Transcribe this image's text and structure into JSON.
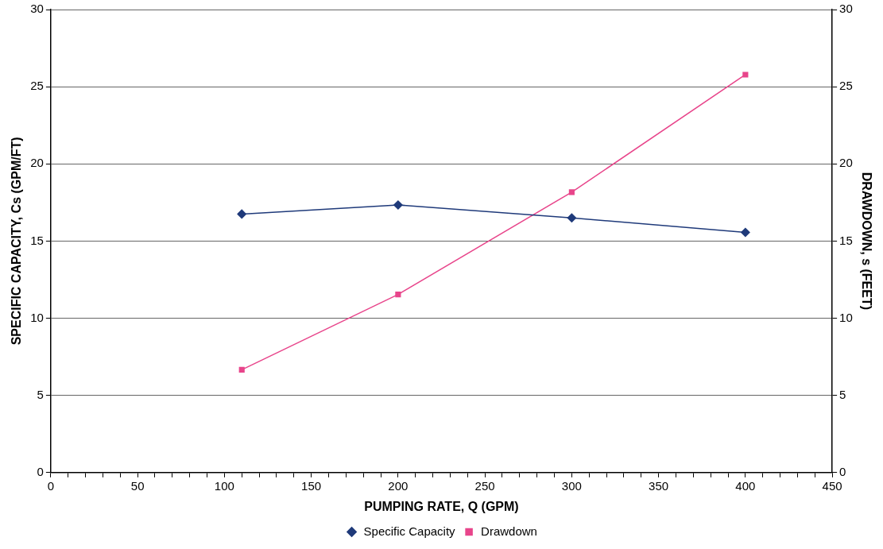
{
  "chart_data": {
    "type": "line",
    "xlabel": "PUMPING RATE, Q (GPM)",
    "ylabel": "SPECIFIC CAPACITY, Cs (GPM/FT)",
    "y2label": "DRAWDOWN, s (FEET)",
    "x": [
      110,
      200,
      300,
      400
    ],
    "series": [
      {
        "name": "Specific Capacity",
        "color": "#1f3a7a",
        "marker": "diamond",
        "values": [
          16.75,
          17.34,
          16.5,
          15.56
        ]
      },
      {
        "name": "Drawdown",
        "color": "#e8458b",
        "marker": "square",
        "axis": "y2",
        "values": [
          6.66,
          11.54,
          18.17,
          25.78
        ]
      }
    ],
    "xlim": [
      0,
      450
    ],
    "xticks": [
      0,
      {
        "value": 10,
        "label": null
      },
      {
        "value": 20,
        "label": null
      },
      {
        "value": 30,
        "label": null
      },
      {
        "value": 40,
        "label": null
      },
      50,
      {
        "value": 60,
        "label": null
      },
      {
        "value": 70,
        "label": null
      },
      {
        "value": 80,
        "label": null
      },
      {
        "value": 90,
        "label": null
      },
      100,
      {
        "value": 110,
        "label": null
      },
      {
        "value": 120,
        "label": null
      },
      {
        "value": 130,
        "label": null
      },
      {
        "value": 140,
        "label": null
      },
      150,
      {
        "value": 160,
        "label": null
      },
      {
        "value": 170,
        "label": null
      },
      {
        "value": 180,
        "label": null
      },
      {
        "value": 190,
        "label": null
      },
      200,
      {
        "value": 210,
        "label": null
      },
      {
        "value": 220,
        "label": null
      },
      {
        "value": 230,
        "label": null
      },
      {
        "value": 240,
        "label": null
      },
      250,
      {
        "value": 260,
        "label": null
      },
      {
        "value": 270,
        "label": null
      },
      {
        "value": 280,
        "label": null
      },
      {
        "value": 290,
        "label": null
      },
      300,
      {
        "value": 310,
        "label": null
      },
      {
        "value": 320,
        "label": null
      },
      {
        "value": 330,
        "label": null
      },
      {
        "value": 340,
        "label": null
      },
      350,
      {
        "value": 360,
        "label": null
      },
      {
        "value": 370,
        "label": null
      },
      {
        "value": 380,
        "label": null
      },
      {
        "value": 390,
        "label": null
      },
      400,
      {
        "value": 410,
        "label": null
      },
      {
        "value": 420,
        "label": null
      },
      {
        "value": 430,
        "label": null
      },
      {
        "value": 440,
        "label": null
      },
      450
    ],
    "ylim": [
      0,
      30
    ],
    "yticks": [
      0,
      5,
      10,
      15,
      20,
      25,
      30
    ],
    "y2lim": [
      0,
      30
    ],
    "y2ticks": [
      0,
      5,
      10,
      15,
      20,
      25,
      30
    ],
    "grid": "y",
    "legend": "bottom",
    "line_style": "solid"
  }
}
